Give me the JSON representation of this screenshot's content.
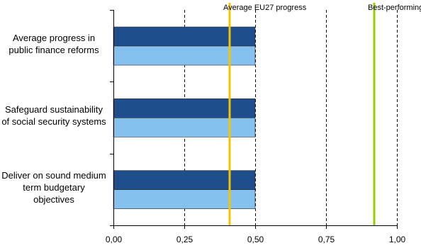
{
  "chart_data": {
    "type": "bar",
    "orientation": "horizontal",
    "categories": [
      "Average progress in public finance reforms",
      "Safeguard sustainability of social security systems",
      "Deliver on sound medium term budgetary objectives"
    ],
    "series": [
      {
        "values": [
          0.5,
          0.5,
          0.5
        ],
        "color": "#1f4e8c"
      },
      {
        "values": [
          0.5,
          0.5,
          0.5
        ],
        "color": "#85c1ee"
      }
    ],
    "reference_lines": [
      {
        "name": "Average EU27 progress",
        "value": 0.41,
        "color": "#f5c400"
      },
      {
        "name": "Best-performing country",
        "value": 0.92,
        "color": "#99cc00"
      }
    ],
    "xlim": [
      0,
      1
    ],
    "xticks": [
      "0,00",
      "0,25",
      "0,50",
      "0,75",
      "1,00"
    ],
    "grid": "vertical dashed",
    "title": "",
    "xlabel": "",
    "ylabel": ""
  }
}
